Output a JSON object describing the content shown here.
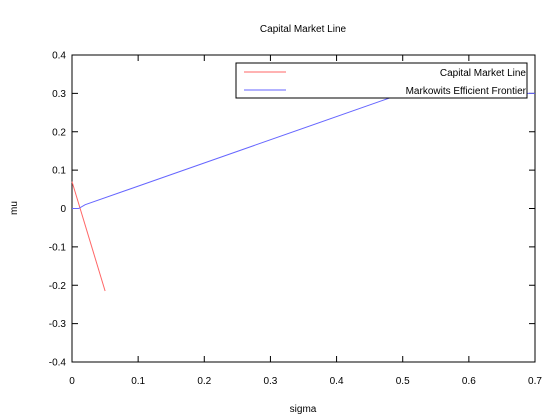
{
  "chart_data": {
    "type": "line",
    "title": "Capital Market Line",
    "xlabel": "sigma",
    "ylabel": "mu",
    "xlim": [
      0,
      0.7
    ],
    "ylim": [
      -0.4,
      0.4
    ],
    "xticks": [
      0,
      0.1,
      0.2,
      0.3,
      0.4,
      0.5,
      0.6,
      0.7
    ],
    "xtick_labels": [
      "0",
      "0.1",
      "0.2",
      "0.3",
      "0.4",
      "0.5",
      "0.6",
      "0.7"
    ],
    "yticks": [
      -0.4,
      -0.3,
      -0.2,
      -0.1,
      0,
      0.1,
      0.2,
      0.3,
      0.4
    ],
    "ytick_labels": [
      "-0.4",
      "-0.3",
      "-0.2",
      "-0.1",
      "0",
      "0.1",
      "0.2",
      "0.3",
      "0.4"
    ],
    "grid": false,
    "legend_position": "top-right",
    "series": [
      {
        "name": "Capital Market Line",
        "color": "#ff6666",
        "x": [
          0,
          0.05
        ],
        "y": [
          0.07,
          -0.215
        ]
      },
      {
        "name": "Markowits Efficient Frontier",
        "color": "#6666ff",
        "x": [
          0,
          0.01,
          0.02,
          0.5,
          0.7
        ],
        "y": [
          0,
          0,
          0.01,
          0.3,
          0.3
        ]
      }
    ]
  }
}
